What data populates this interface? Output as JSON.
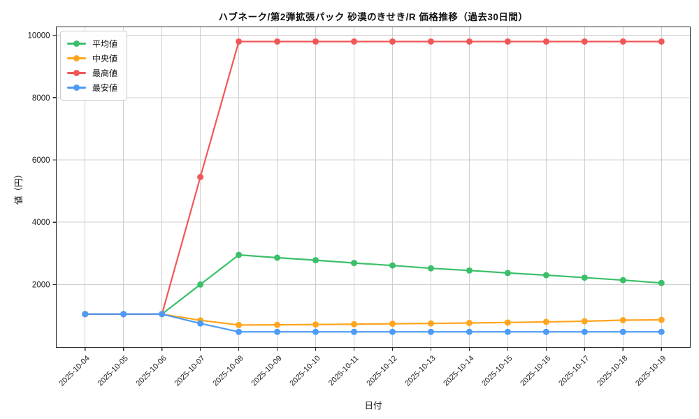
{
  "page": {
    "background": "#ffffff"
  },
  "chart_data": {
    "type": "line",
    "title": "ハブネーク/第2弾拡張パック 砂漠のきせき/R 価格推移（過去30日間）",
    "xlabel": "日付",
    "ylabel": "値（円）",
    "categories": [
      "2025-10-04",
      "2025-10-05",
      "2025-10-06",
      "2025-10-07",
      "2025-10-08",
      "2025-10-09",
      "2025-10-10",
      "2025-10-11",
      "2025-10-12",
      "2025-10-13",
      "2025-10-14",
      "2025-10-15",
      "2025-10-16",
      "2025-10-17",
      "2025-10-18",
      "2025-10-19"
    ],
    "series": [
      {
        "key": "average",
        "name": "平均値",
        "color": "#3bbf6a",
        "values": [
          1050,
          1050,
          1050,
          2000,
          2950,
          2860,
          2780,
          2690,
          2610,
          2520,
          2450,
          2370,
          2300,
          2220,
          2140,
          2050
        ]
      },
      {
        "key": "median",
        "name": "中央値",
        "color": "#ffa51f",
        "values": [
          1050,
          1050,
          1050,
          850,
          700,
          705,
          715,
          725,
          740,
          750,
          765,
          780,
          800,
          820,
          855,
          865
        ]
      },
      {
        "key": "max",
        "name": "最高値",
        "color": "#f25757",
        "values": [
          1050,
          1050,
          1050,
          5450,
          9800,
          9800,
          9800,
          9800,
          9800,
          9800,
          9800,
          9800,
          9800,
          9800,
          9800,
          9800
        ]
      },
      {
        "key": "min",
        "name": "最安値",
        "color": "#4d9bf5",
        "values": [
          1050,
          1050,
          1050,
          750,
          480,
          480,
          480,
          480,
          480,
          480,
          480,
          480,
          480,
          480,
          480,
          480
        ]
      }
    ],
    "legend": {
      "position": "upper-left",
      "order": [
        "平均値",
        "中央値",
        "最高値",
        "最安値"
      ]
    },
    "ylim": [
      -20,
      10270
    ],
    "yticks": [
      2000,
      4000,
      6000,
      8000,
      10000
    ],
    "grid": true,
    "x_margin": 0.75,
    "styles": {
      "grid_color": "#cfcfcf",
      "spine_color": "#2b2b2b",
      "tick_label_color": "#1a1a1a",
      "line_width": 2.2,
      "marker_radius": 4.5
    }
  }
}
